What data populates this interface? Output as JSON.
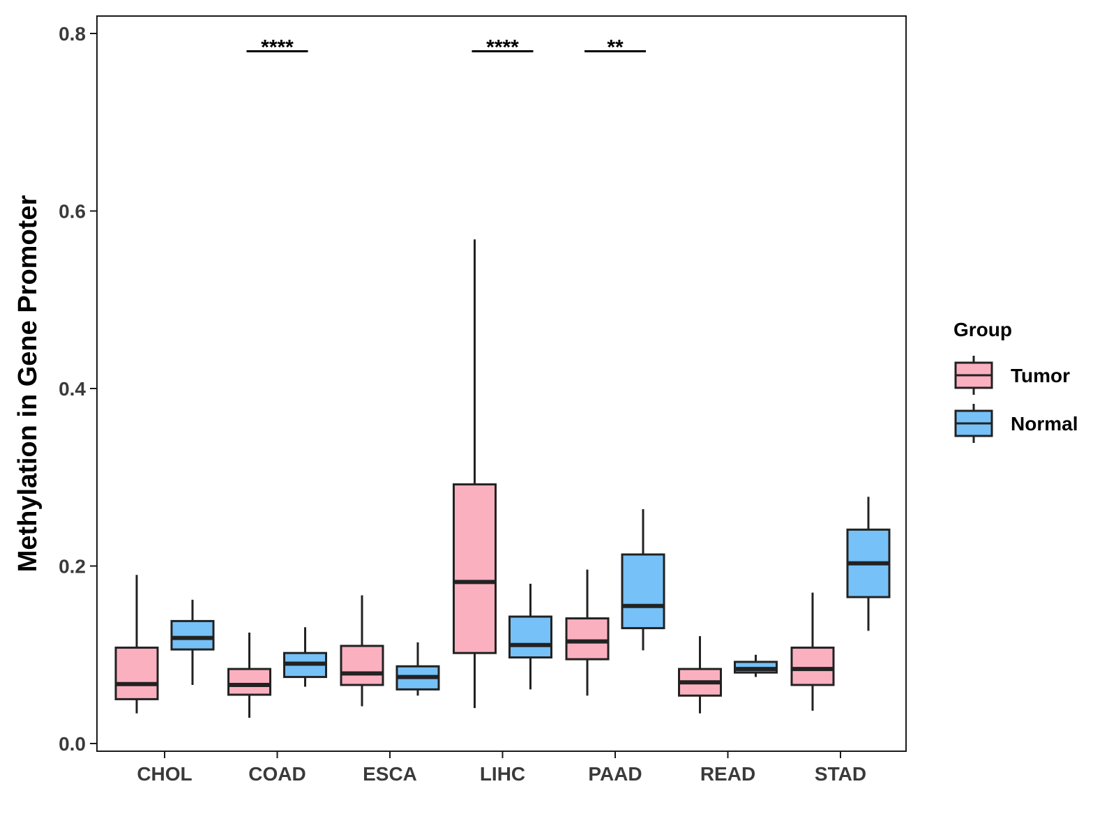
{
  "chart_data": {
    "type": "boxplot",
    "ylabel": "Methylation in Gene Promoter",
    "xlabel": "",
    "ylim": [
      0,
      0.8
    ],
    "yticks": [
      0.0,
      0.2,
      0.4,
      0.6,
      0.8
    ],
    "ytick_labels": [
      "0.0",
      "0.2",
      "0.4",
      "0.6",
      "0.8"
    ],
    "categories": [
      "CHOL",
      "COAD",
      "ESCA",
      "LIHC",
      "PAAD",
      "READ",
      "STAD"
    ],
    "legend": {
      "title": "Group",
      "position": "right",
      "entries": [
        {
          "name": "Tumor",
          "color": "#fbb0c0"
        },
        {
          "name": "Normal",
          "color": "#76c1f7"
        }
      ]
    },
    "series": [
      {
        "name": "Tumor",
        "color": "#fbb0c0",
        "boxes": [
          {
            "category": "CHOL",
            "min": 0.034,
            "q1": 0.05,
            "median": 0.067,
            "q3": 0.108,
            "max": 0.19
          },
          {
            "category": "COAD",
            "min": 0.029,
            "q1": 0.055,
            "median": 0.066,
            "q3": 0.084,
            "max": 0.125
          },
          {
            "category": "ESCA",
            "min": 0.042,
            "q1": 0.066,
            "median": 0.079,
            "q3": 0.11,
            "max": 0.167
          },
          {
            "category": "LIHC",
            "min": 0.04,
            "q1": 0.102,
            "median": 0.182,
            "q3": 0.292,
            "max": 0.568
          },
          {
            "category": "PAAD",
            "min": 0.054,
            "q1": 0.095,
            "median": 0.115,
            "q3": 0.141,
            "max": 0.196
          },
          {
            "category": "READ",
            "min": 0.034,
            "q1": 0.054,
            "median": 0.069,
            "q3": 0.084,
            "max": 0.121
          },
          {
            "category": "STAD",
            "min": 0.037,
            "q1": 0.066,
            "median": 0.084,
            "q3": 0.108,
            "max": 0.17
          }
        ]
      },
      {
        "name": "Normal",
        "color": "#76c1f7",
        "boxes": [
          {
            "category": "CHOL",
            "min": 0.066,
            "q1": 0.106,
            "median": 0.119,
            "q3": 0.138,
            "max": 0.162
          },
          {
            "category": "COAD",
            "min": 0.064,
            "q1": 0.075,
            "median": 0.09,
            "q3": 0.102,
            "max": 0.131
          },
          {
            "category": "ESCA",
            "min": 0.054,
            "q1": 0.061,
            "median": 0.075,
            "q3": 0.087,
            "max": 0.114
          },
          {
            "category": "LIHC",
            "min": 0.061,
            "q1": 0.097,
            "median": 0.111,
            "q3": 0.143,
            "max": 0.18
          },
          {
            "category": "PAAD",
            "min": 0.105,
            "q1": 0.13,
            "median": 0.155,
            "q3": 0.213,
            "max": 0.264
          },
          {
            "category": "READ",
            "min": 0.075,
            "q1": 0.08,
            "median": 0.084,
            "q3": 0.092,
            "max": 0.1
          },
          {
            "category": "STAD",
            "min": 0.127,
            "q1": 0.165,
            "median": 0.203,
            "q3": 0.241,
            "max": 0.278
          }
        ]
      }
    ],
    "annotations": [
      {
        "category": "COAD",
        "label": "****",
        "y": 0.78
      },
      {
        "category": "LIHC",
        "label": "****",
        "y": 0.78
      },
      {
        "category": "PAAD",
        "label": "**",
        "y": 0.78
      }
    ]
  }
}
